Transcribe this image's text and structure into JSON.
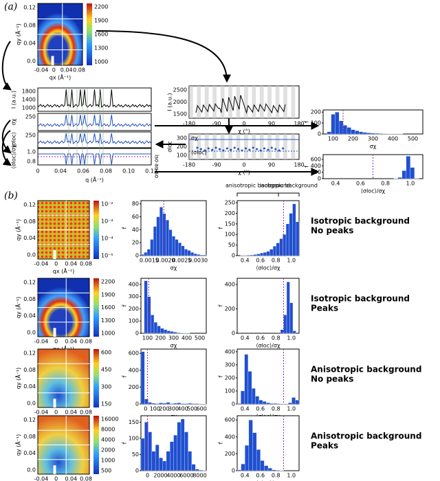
{
  "panel_labels": [
    "(a)",
    "(b)"
  ],
  "a": {
    "image": {
      "xlabel": "qx (Å⁻¹)",
      "ylabel": "qy (Å⁻¹)",
      "xticks": [
        "-0.04",
        "0",
        "0.04",
        "0.08"
      ],
      "yticks": [
        "0.12",
        "0.08",
        "0.04",
        "0.0"
      ],
      "colorbar": [
        "2200",
        "1900",
        "1600",
        "1300",
        "1000"
      ]
    },
    "stack": {
      "xlabel": "q (Å⁻¹)",
      "xticks": [
        "0",
        "0.04",
        "0.06",
        "0.08",
        "0.10",
        "0.12"
      ],
      "rows": [
        {
          "ylabel": "I (a.u.)",
          "yticks": [
            "1800",
            "1400",
            "1000"
          ]
        },
        {
          "ylabel": "σχ",
          "yticks": [
            "250"
          ]
        },
        {
          "ylabel": "⟨σloc⟩",
          "yticks": [
            "250"
          ]
        },
        {
          "ylabel": "⟨σloc⟩/σχ",
          "yticks": [
            "1.0",
            "0.8"
          ]
        }
      ],
      "side": [
        "iso",
        "aniso"
      ]
    },
    "chi": {
      "xlabel": "χ (°)",
      "ylabel": "I (a.u.)",
      "xticks": [
        "-180",
        "-90",
        "0",
        "90",
        "180"
      ],
      "yticks": [
        "2500",
        "2000",
        "1500"
      ]
    },
    "sigma_chi": {
      "xlabel": "χ (°)",
      "ylabel": "σloc",
      "xticks": [
        "-180",
        "-90",
        "0",
        "90",
        "180"
      ],
      "yticks": [
        "300",
        "200",
        "100"
      ],
      "legend": [
        "σχ",
        "⟨σloc⟩"
      ]
    },
    "hists": [
      {
        "xlabel": "σχ",
        "ylabel": "f",
        "xticks": [
          "100",
          "200",
          "300",
          "400",
          "500"
        ],
        "yticks": [
          0,
          100,
          200
        ],
        "ylim": [
          0,
          220
        ],
        "counts": [
          0,
          20,
          180,
          200,
          120,
          80,
          60,
          40,
          30,
          20,
          15,
          10,
          8,
          6,
          4,
          3,
          2,
          2,
          1,
          1,
          0,
          0,
          0,
          0,
          0
        ]
      },
      {
        "xlabel": "⟨σloc⟩/σχ",
        "ylabel": "f",
        "xticks": [
          "0.4",
          "0.6",
          "0.8",
          "1.0"
        ],
        "yticks": [
          0,
          200,
          400,
          600
        ],
        "ylim": [
          0,
          750
        ],
        "counts": [
          0,
          0,
          0,
          0,
          0,
          0,
          0,
          0,
          0,
          0,
          0,
          0,
          0,
          0,
          0,
          0,
          0,
          5,
          40,
          250,
          700,
          350,
          10,
          0
        ]
      }
    ]
  },
  "b": {
    "annotations": [
      "anisotropic background",
      "isotropic background"
    ],
    "rows": [
      {
        "title": [
          "Isotropic background",
          "No peaks"
        ],
        "colorbar": [
          "10⁻²",
          "10⁻³",
          "10⁻⁴",
          "10⁻⁵"
        ],
        "hists": [
          {
            "xlabel": "σχ",
            "ylabel": "f",
            "xticks": [
              "0.0015",
              "0.0020",
              "0.0025",
              "0.0030"
            ],
            "yticks": [
              0,
              20,
              40,
              60,
              80
            ],
            "ylim": [
              0,
              85
            ],
            "counts": [
              2,
              5,
              10,
              25,
              45,
              60,
              75,
              65,
              55,
              40,
              30,
              25,
              20,
              15,
              10,
              8,
              5,
              3,
              2,
              1,
              1
            ]
          },
          {
            "xlabel": "⟨σloc⟩/σχ",
            "ylabel": "f",
            "xticks": [
              "0.4",
              "0.6",
              "0.8",
              "1.0"
            ],
            "yticks": [
              0,
              50,
              100,
              150,
              200,
              250
            ],
            "ylim": [
              0,
              260
            ],
            "counts": [
              0,
              1,
              1,
              2,
              3,
              5,
              8,
              12,
              15,
              20,
              30,
              45,
              60,
              80,
              100,
              150,
              200,
              245,
              160
            ]
          }
        ]
      },
      {
        "title": [
          "Isotropic background",
          "Peaks"
        ],
        "colorbar": [
          "2200",
          "1900",
          "1600",
          "1300",
          "1000"
        ],
        "hists": [
          {
            "xlabel": "σχ",
            "ylabel": "f",
            "xticks": [
              "100",
              "200",
              "300",
              "400",
              "500"
            ],
            "yticks": [
              0,
              100,
              200,
              300,
              400
            ],
            "ylim": [
              0,
              450
            ],
            "counts": [
              0,
              430,
              300,
              150,
              90,
              60,
              40,
              30,
              20,
              15,
              10,
              5,
              3,
              2,
              1,
              0,
              0,
              0,
              0,
              0
            ]
          },
          {
            "xlabel": "⟨σloc⟩/σχ",
            "ylabel": "f",
            "xticks": [
              "0.4",
              "0.6",
              "0.8",
              "1.0"
            ],
            "yticks": [
              0,
              200,
              400
            ],
            "ylim": [
              0,
              450
            ],
            "counts": [
              0,
              0,
              0,
              0,
              0,
              0,
              0,
              0,
              0,
              0,
              0,
              0,
              0,
              0,
              30,
              150,
              420,
              250,
              20,
              0
            ]
          }
        ]
      },
      {
        "title": [
          "Anisotropic background",
          "No peaks"
        ],
        "colorbar": [
          "600",
          "450",
          "300",
          "150"
        ],
        "hists": [
          {
            "xlabel": "σχ",
            "ylabel": "f",
            "xticks": [
              "0",
              "100",
              "200",
              "300",
              "400",
              "500",
              "600"
            ],
            "yticks": [
              0,
              200,
              400,
              600
            ],
            "ylim": [
              0,
              650
            ],
            "counts": [
              620,
              60,
              20,
              10,
              5,
              15,
              10,
              20,
              5,
              10,
              15,
              5,
              5,
              10,
              5,
              5,
              3,
              2
            ]
          },
          {
            "xlabel": "⟨σloc⟩/σχ",
            "ylabel": "f",
            "xticks": [
              "0.4",
              "0.6",
              "0.8",
              "1.0"
            ],
            "yticks": [
              0,
              100,
              200,
              300,
              400
            ],
            "ylim": [
              0,
              420
            ],
            "counts": [
              5,
              100,
              380,
              250,
              120,
              60,
              30,
              20,
              10,
              5,
              5,
              3,
              2,
              2,
              10,
              50,
              30
            ]
          }
        ]
      },
      {
        "title": [
          "Anisotropic background",
          "Peaks"
        ],
        "colorbar": [
          "16000",
          "8000",
          "4000",
          "2000",
          "1000",
          "500"
        ],
        "hists": [
          {
            "xlabel": "σχ",
            "ylabel": "f",
            "xticks": [
              "0",
              "2000",
              "4000",
              "6000",
              "8000"
            ],
            "yticks": [
              0,
              50,
              100,
              150
            ],
            "ylim": [
              0,
              170
            ],
            "counts": [
              100,
              150,
              120,
              60,
              80,
              40,
              30,
              60,
              90,
              110,
              150,
              160,
              120,
              60,
              20,
              5,
              2,
              1
            ]
          },
          {
            "xlabel": "⟨σloc⟩/σχ",
            "ylabel": "f",
            "xticks": [
              "0.4",
              "0.6",
              "0.8",
              "1.0"
            ],
            "yticks": [
              0,
              200,
              400,
              600
            ],
            "ylim": [
              0,
              650
            ],
            "counts": [
              10,
              80,
              300,
              600,
              450,
              250,
              120,
              60,
              30,
              10,
              5,
              2,
              0,
              0,
              0,
              0
            ]
          }
        ]
      }
    ]
  }
}
